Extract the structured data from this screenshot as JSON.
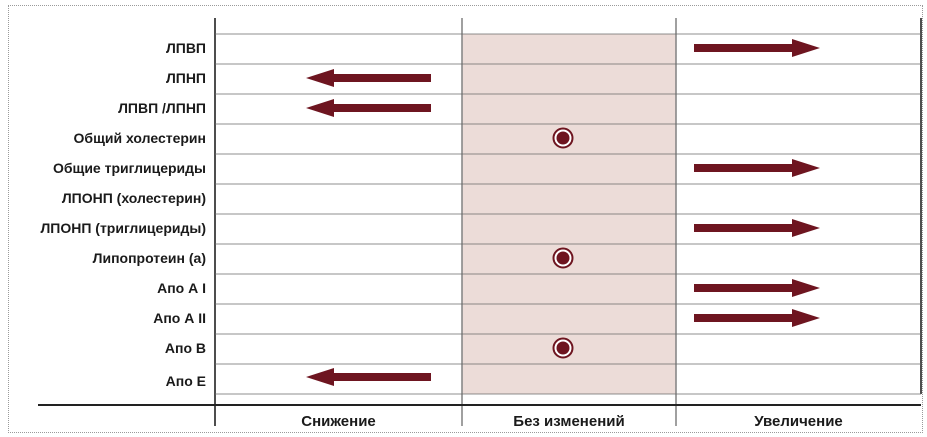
{
  "rows": [
    {
      "label": "ЛПВП",
      "effect": "increase"
    },
    {
      "label": "ЛПНП",
      "effect": "decrease"
    },
    {
      "label": "ЛПВП /ЛПНП",
      "effect": "decrease"
    },
    {
      "label": "Общий холестерин",
      "effect": "unchanged"
    },
    {
      "label": "Общие триглицериды",
      "effect": "increase"
    },
    {
      "label": "ЛПОНП (холестерин)",
      "effect": "none"
    },
    {
      "label": "ЛПОНП (триглицериды)",
      "effect": "increase"
    },
    {
      "label": "Липопротеин (а)",
      "effect": "unchanged"
    },
    {
      "label": "Апо  А I",
      "effect": "increase"
    },
    {
      "label": "Апо  А II",
      "effect": "increase"
    },
    {
      "label": "Апо  В",
      "effect": "unchanged"
    },
    {
      "label": "Апо  Е",
      "effect": "decrease"
    }
  ],
  "columns": [
    {
      "key": "decrease",
      "label": "Снижение"
    },
    {
      "key": "unchanged",
      "label": "Без изменений"
    },
    {
      "key": "increase",
      "label": "Увеличение"
    }
  ],
  "colors": {
    "arrow": "#6e1520",
    "highlight_band": "#ecdcd8",
    "grid": "#6a6a6a"
  }
}
